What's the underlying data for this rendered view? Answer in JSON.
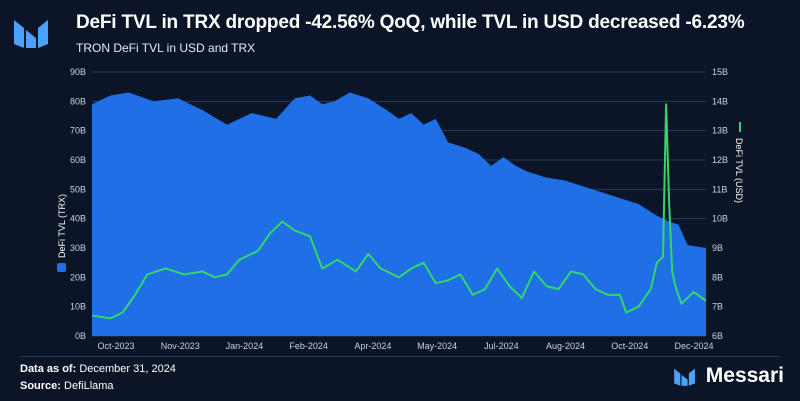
{
  "header": {
    "title": "DeFi TVL in TRX dropped -42.56% QoQ, while TVL in USD decreased -6.23%",
    "subtitle": "TRON DeFi TVL in USD and TRX"
  },
  "footer": {
    "data_as_of_label": "Data as of:",
    "data_as_of_value": "December 31, 2024",
    "source_label": "Source:",
    "source_value": "DefiLlama",
    "brand": "Messari"
  },
  "colors": {
    "background": "#0c1527",
    "trx_area": "#1f6fe6",
    "usd_line": "#34d66b",
    "grid": "#2a3a59",
    "axis_text": "#c9d2e3"
  },
  "chart_data": {
    "type": "area",
    "x_ticks": [
      "Oct-2023",
      "Nov-2023",
      "Jan-2024",
      "Feb-2024",
      "Apr-2024",
      "May-2024",
      "Jul-2024",
      "Aug-2024",
      "Oct-2024",
      "Dec-2024"
    ],
    "y_left": {
      "label": "DeFi TVL (TRX)",
      "range": [
        0,
        90
      ],
      "unit": "B",
      "ticks": [
        "0B",
        "10B",
        "20B",
        "30B",
        "40B",
        "50B",
        "60B",
        "70B",
        "80B",
        "90B"
      ]
    },
    "y_right": {
      "label": "DeFi TVL (USD)",
      "range": [
        6,
        15
      ],
      "unit": "B",
      "ticks": [
        "6B",
        "7B",
        "8B",
        "9B",
        "10B",
        "11B",
        "12B",
        "13B",
        "14B",
        "15B"
      ]
    },
    "series": [
      {
        "name": "DeFi TVL (TRX)",
        "type": "area",
        "axis": "left",
        "x": [
          0,
          0.03,
          0.06,
          0.1,
          0.14,
          0.18,
          0.22,
          0.26,
          0.3,
          0.33,
          0.355,
          0.375,
          0.395,
          0.42,
          0.45,
          0.48,
          0.5,
          0.52,
          0.54,
          0.56,
          0.58,
          0.61,
          0.63,
          0.65,
          0.67,
          0.69,
          0.71,
          0.74,
          0.77,
          0.8,
          0.83,
          0.86,
          0.89,
          0.92,
          0.94,
          0.955,
          0.97,
          1.0
        ],
        "values": [
          79,
          82,
          83,
          80,
          81,
          77,
          72,
          76,
          74,
          81,
          82,
          79,
          80,
          83,
          81,
          77,
          74,
          76,
          72,
          74,
          66,
          64,
          62,
          58,
          61,
          58,
          56,
          54,
          53,
          51,
          49,
          47,
          45,
          41,
          39,
          38,
          31,
          30
        ]
      },
      {
        "name": "DeFi TVL (USD)",
        "type": "line",
        "axis": "right",
        "x": [
          0,
          0.03,
          0.05,
          0.07,
          0.09,
          0.12,
          0.15,
          0.18,
          0.2,
          0.22,
          0.24,
          0.27,
          0.29,
          0.31,
          0.33,
          0.355,
          0.375,
          0.4,
          0.43,
          0.45,
          0.47,
          0.5,
          0.52,
          0.54,
          0.56,
          0.58,
          0.6,
          0.62,
          0.64,
          0.66,
          0.68,
          0.7,
          0.72,
          0.74,
          0.76,
          0.78,
          0.8,
          0.82,
          0.84,
          0.86,
          0.87,
          0.89,
          0.91,
          0.92,
          0.93,
          0.935,
          0.94,
          0.945,
          0.95,
          0.96,
          0.98,
          1.0
        ],
        "values": [
          6.7,
          6.6,
          6.8,
          7.4,
          8.1,
          8.3,
          8.1,
          8.2,
          8.0,
          8.1,
          8.6,
          8.9,
          9.5,
          9.9,
          9.6,
          9.4,
          8.3,
          8.6,
          8.2,
          8.8,
          8.3,
          8.0,
          8.3,
          8.5,
          7.8,
          7.9,
          8.1,
          7.4,
          7.6,
          8.3,
          7.7,
          7.3,
          8.2,
          7.7,
          7.6,
          8.2,
          8.1,
          7.6,
          7.4,
          7.4,
          6.8,
          7.0,
          7.6,
          8.5,
          8.7,
          13.9,
          10.5,
          8.2,
          7.7,
          7.1,
          7.5,
          7.2
        ]
      }
    ]
  }
}
